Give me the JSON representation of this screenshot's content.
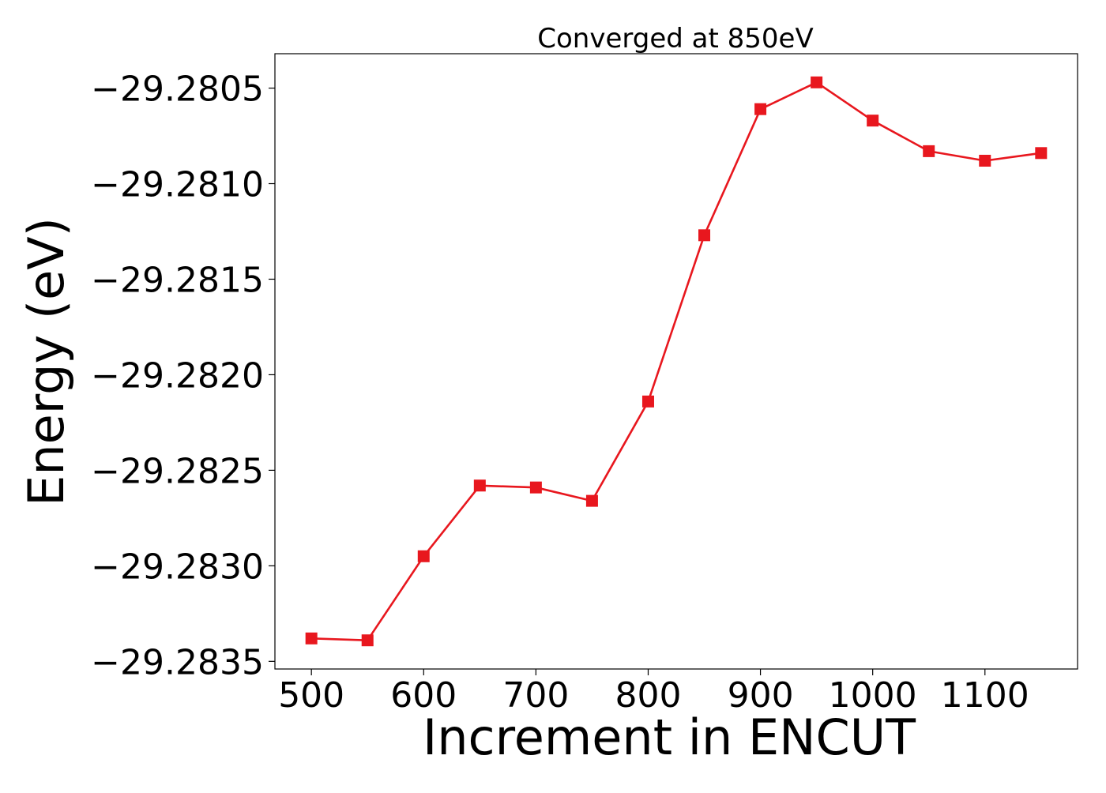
{
  "chart_data": {
    "type": "line",
    "title": "Converged at 850eV",
    "xlabel": "Increment in ENCUT",
    "ylabel": "Energy (eV)",
    "x": [
      500,
      550,
      600,
      650,
      700,
      750,
      800,
      850,
      900,
      950,
      1000,
      1050,
      1100,
      1150
    ],
    "series": [
      {
        "values": [
          -29.28338,
          -29.28339,
          -29.28295,
          -29.28258,
          -29.28259,
          -29.28266,
          -29.28214,
          -29.28127,
          -29.28061,
          -29.28047,
          -29.28067,
          -29.28083,
          -29.28088,
          -29.28084
        ],
        "color": "#e8171e",
        "marker": "square"
      }
    ],
    "xlim": [
      467.5,
      1182.5
    ],
    "ylim": [
      -29.28354,
      -29.28032
    ],
    "xticks": [
      500,
      600,
      700,
      800,
      900,
      1000,
      1100
    ],
    "xtick_labels": [
      "500",
      "600",
      "700",
      "800",
      "900",
      "1000",
      "1100"
    ],
    "yticks": [
      -29.2835,
      -29.283,
      -29.2825,
      -29.282,
      -29.2815,
      -29.281,
      -29.2805
    ],
    "ytick_labels": [
      "−29.2835",
      "−29.2830",
      "−29.2825",
      "−29.2820",
      "−29.2815",
      "−29.2810",
      "−29.2805"
    ],
    "grid": false,
    "legend": false
  }
}
